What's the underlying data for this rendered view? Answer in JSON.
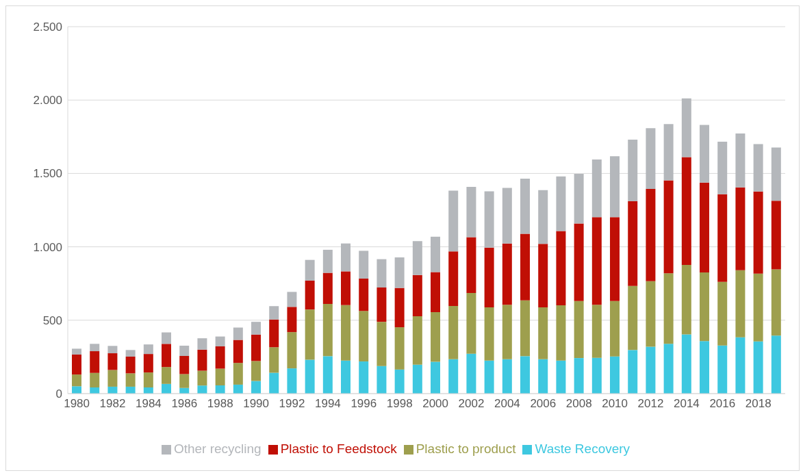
{
  "chart_data": {
    "type": "bar",
    "stacked": true,
    "categories": [
      "1980",
      null,
      "1982",
      null,
      "1984",
      null,
      "1986",
      null,
      "1988",
      null,
      "1990",
      null,
      "1992",
      null,
      "1994",
      null,
      "1996",
      null,
      "1998",
      null,
      "2000",
      null,
      "2002",
      null,
      "2004",
      null,
      "2006",
      null,
      "2008",
      null,
      "2010",
      null,
      "2012",
      null,
      "2014",
      null,
      "2016",
      null,
      "2018",
      null
    ],
    "series": [
      {
        "name": "Waste Recovery",
        "color": "#3ec8e0",
        "values": [
          50,
          42,
          47,
          47,
          42,
          66,
          38,
          55,
          56,
          61,
          86,
          142,
          172,
          231,
          255,
          225,
          219,
          188,
          164,
          197,
          217,
          234,
          272,
          225,
          234,
          255,
          234,
          225,
          242,
          244,
          253,
          297,
          319,
          339,
          403,
          358,
          328,
          384,
          356,
          395
        ]
      },
      {
        "name": "Plastic to product",
        "color": "#9e9f4e",
        "values": [
          80,
          99,
          114,
          91,
          102,
          115,
          95,
          101,
          114,
          148,
          136,
          174,
          247,
          342,
          356,
          378,
          344,
          301,
          288,
          330,
          338,
          363,
          414,
          363,
          371,
          381,
          354,
          377,
          389,
          361,
          378,
          437,
          447,
          481,
          474,
          467,
          433,
          457,
          461,
          452
        ]
      },
      {
        "name": "Plastic to Feedstock",
        "color": "#c00f05",
        "values": [
          136,
          148,
          114,
          114,
          126,
          158,
          123,
          143,
          152,
          157,
          180,
          189,
          172,
          197,
          212,
          230,
          221,
          234,
          268,
          281,
          273,
          372,
          380,
          407,
          418,
          453,
          432,
          506,
          528,
          597,
          571,
          577,
          629,
          633,
          734,
          613,
          597,
          564,
          560,
          467
        ]
      },
      {
        "name": "Other recycling",
        "color": "#b4b7bb",
        "values": [
          40,
          50,
          50,
          45,
          65,
          78,
          71,
          78,
          67,
          84,
          87,
          91,
          102,
          141,
          157,
          190,
          189,
          193,
          208,
          231,
          241,
          414,
          343,
          383,
          379,
          375,
          366,
          372,
          338,
          393,
          415,
          419,
          414,
          383,
          400,
          393,
          359,
          367,
          323,
          363
        ]
      }
    ],
    "ylim": [
      0,
      2500
    ],
    "yticks": [
      0,
      500,
      {
        "value": 1000,
        "label": "1.000"
      },
      {
        "value": 1500,
        "label": "1.500"
      },
      {
        "value": 2000,
        "label": "2.000"
      },
      {
        "value": 2500,
        "label": "2.500"
      }
    ],
    "grid": "y",
    "legend": "bottom"
  }
}
